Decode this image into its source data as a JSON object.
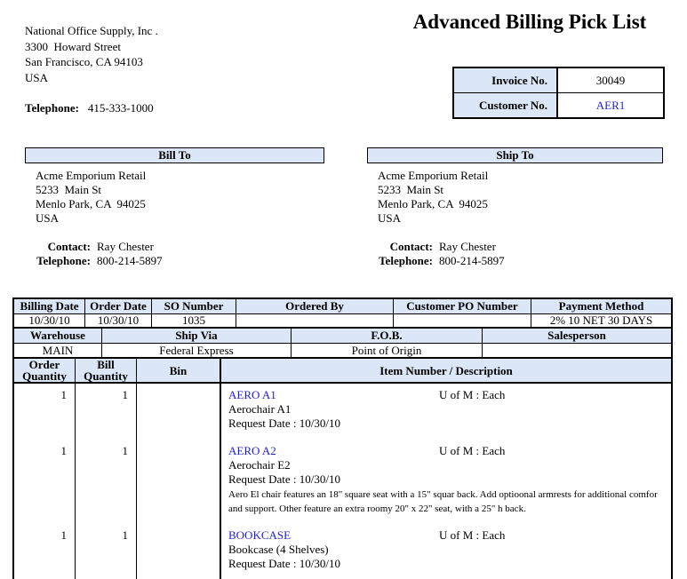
{
  "colors": {
    "header_fill": "#dbe6f7",
    "link_blue": "#1f1fd4",
    "border": "#000000"
  },
  "title": "Advanced Billing Pick List",
  "company": {
    "name": "National Office Supply, Inc .",
    "street": "3300  Howard Street",
    "city": "San Francisco, CA 94103",
    "country": "USA",
    "telephone_label": "Telephone:",
    "telephone": "415-333-1000"
  },
  "invoice_box": {
    "invoice_label": "Invoice No.",
    "invoice_value": "30049",
    "customer_label": "Customer No.",
    "customer_value": "AER1"
  },
  "bill_to": {
    "header": "Bill To",
    "name": "Acme Emporium Retail",
    "street": "5233  Main St",
    "city": "Menlo Park, CA  94025",
    "country": "USA",
    "contact_label": "Contact:",
    "contact": "Ray Chester",
    "telephone_label": "Telephone:",
    "telephone": "800-214-5897"
  },
  "ship_to": {
    "header": "Ship To",
    "name": "Acme Emporium Retail",
    "street": "5233  Main St",
    "city": "Menlo Park, CA  94025",
    "country": "USA",
    "contact_label": "Contact:",
    "contact": "Ray Chester",
    "telephone_label": "Telephone:",
    "telephone": "800-214-5897"
  },
  "order_info": {
    "row1_headers": [
      "Billing Date",
      "Order Date",
      "SO Number",
      "Ordered By",
      "Customer PO Number",
      "Payment Method"
    ],
    "row1_values": [
      "10/30/10",
      "10/30/10",
      "1035",
      "",
      "",
      "2% 10 NET 30 DAYS"
    ],
    "row2_headers": [
      "Warehouse",
      "Ship Via",
      "F.O.B.",
      "Salesperson"
    ],
    "row2_values": [
      "MAIN",
      "Federal Express",
      "Point of Origin",
      ""
    ],
    "row3_headers": [
      "Order Quantity",
      "Bill Quantity",
      "Bin",
      "Item Number / Description"
    ]
  },
  "items": [
    {
      "order_qty": "1",
      "bill_qty": "1",
      "bin": "",
      "item_number": "AERO A1",
      "uom": "U of M : Each",
      "description": "Aerochair A1",
      "request_date": "Request Date : 10/30/10",
      "long_description": ""
    },
    {
      "order_qty": "1",
      "bill_qty": "1",
      "bin": "",
      "item_number": "AERO A2",
      "uom": "U of M : Each",
      "description": "Aerochair E2",
      "request_date": "Request Date : 10/30/10",
      "long_description": "Aero El chair features an 18\" square seat with a 15\" squar back.  Add optioonal armrests for additional comfor and support.  Other feature an extra roomy 20\" x 22\" seat, with a 25\" h back."
    },
    {
      "order_qty": "1",
      "bill_qty": "1",
      "bin": "",
      "item_number": "BOOKCASE",
      "uom": "U of M : Each",
      "description": "Bookcase (4 Shelves)",
      "request_date": "Request Date : 10/30/10",
      "long_description": ""
    }
  ]
}
